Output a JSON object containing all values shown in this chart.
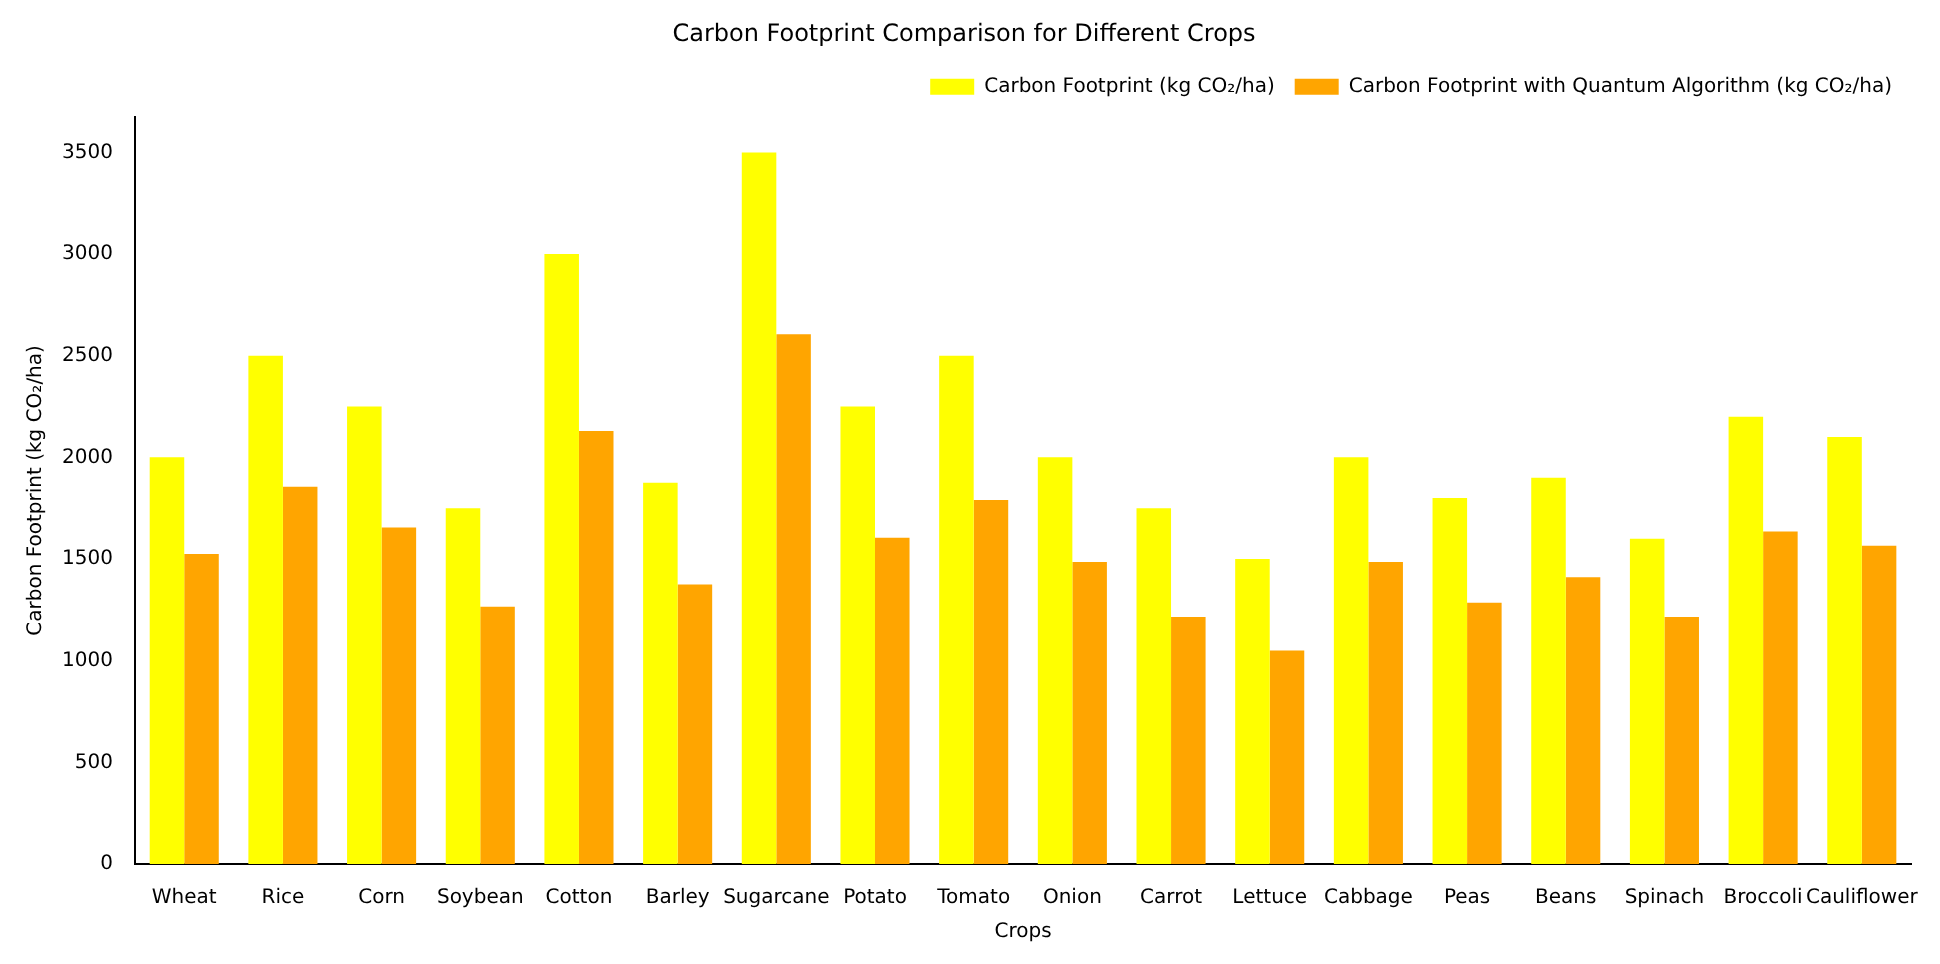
{
  "chart_data": {
    "type": "bar",
    "title": "Carbon Footprint Comparison for Different Crops",
    "xlabel": "Crops",
    "ylabel": "Carbon Footprint (kg CO₂/ha)",
    "categories": [
      "Wheat",
      "Rice",
      "Corn",
      "Soybean",
      "Cotton",
      "Barley",
      "Sugarcane",
      "Potato",
      "Tomato",
      "Onion",
      "Carrot",
      "Lettuce",
      "Cabbage",
      "Peas",
      "Beans",
      "Spinach",
      "Broccoli",
      "Cauliflower"
    ],
    "series": [
      {
        "name": "Carbon Footprint (kg CO₂/ha)",
        "color": "#ffff00",
        "values": [
          2000,
          2500,
          2250,
          1750,
          3000,
          1875,
          3500,
          2250,
          2500,
          2000,
          1750,
          1500,
          2000,
          1800,
          1900,
          1600,
          2200,
          2100
        ]
      },
      {
        "name": "Carbon Footprint with Quantum Algorithm (kg CO₂/ha)",
        "color": "#ffa500",
        "values": [
          1525,
          1855,
          1655,
          1265,
          2130,
          1375,
          2605,
          1605,
          1790,
          1485,
          1215,
          1050,
          1485,
          1285,
          1410,
          1215,
          1635,
          1565
        ]
      }
    ],
    "ylim": [
      0,
      3675
    ],
    "yticks": [
      0,
      500,
      1000,
      1500,
      2000,
      2500,
      3000,
      3500
    ],
    "grid": false,
    "legend": "top right"
  }
}
